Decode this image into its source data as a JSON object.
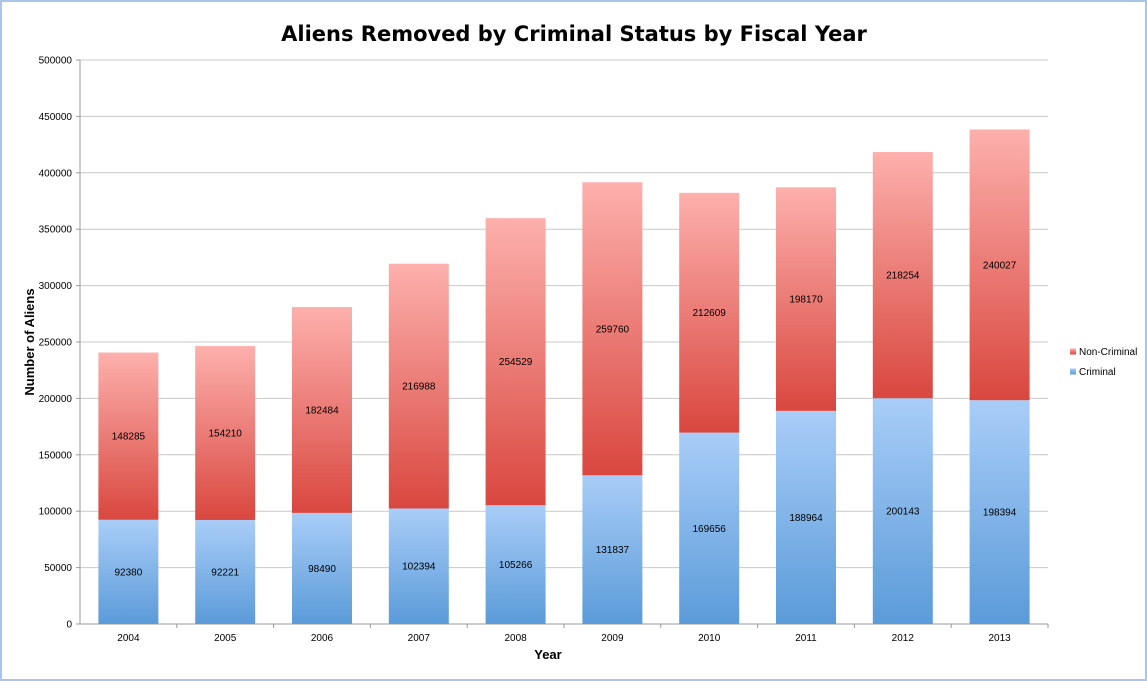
{
  "chart_data": {
    "type": "bar",
    "stacked": true,
    "title": "Aliens Removed by Criminal Status by Fiscal Year",
    "xlabel": "Year",
    "ylabel": "Number of Aliens",
    "ylim": [
      0,
      500000
    ],
    "yticks": [
      0,
      50000,
      100000,
      150000,
      200000,
      250000,
      300000,
      350000,
      400000,
      450000,
      500000
    ],
    "grid": true,
    "legend_position": "right",
    "categories": [
      "2004",
      "2005",
      "2006",
      "2007",
      "2008",
      "2009",
      "2010",
      "2011",
      "2012",
      "2013"
    ],
    "series": [
      {
        "name": "Criminal",
        "color_top": "#a9cdf8",
        "color_bottom": "#5b9bd9",
        "values": [
          92380,
          92221,
          98490,
          102394,
          105266,
          131837,
          169656,
          188964,
          200143,
          198394
        ]
      },
      {
        "name": "Non-Criminal",
        "color_top": "#fdb0ad",
        "color_bottom": "#d9473f",
        "values": [
          148285,
          154210,
          182484,
          216988,
          254529,
          259760,
          212609,
          198170,
          218254,
          240027
        ]
      }
    ]
  }
}
